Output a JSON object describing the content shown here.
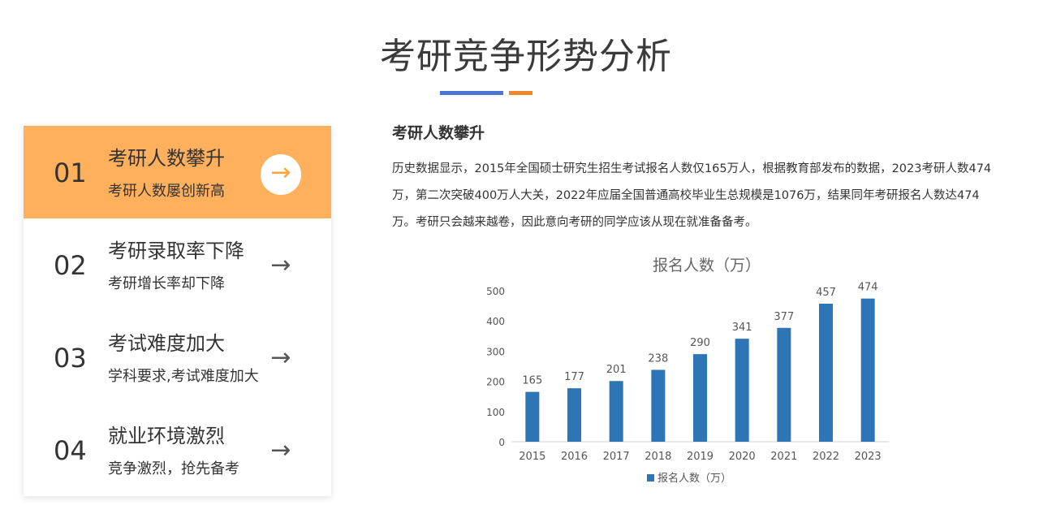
{
  "header": {
    "title": "考研竞争形势分析"
  },
  "colors": {
    "accent_blue": "#4a77d4",
    "accent_orange": "#f0872c",
    "active_bg": "#ffb05c",
    "bar": "#2e75b6"
  },
  "menu": {
    "items": [
      {
        "num": "01",
        "title": "考研人数攀升",
        "sub": "考研人数屡创新高",
        "icon": "arrow-right-icon",
        "active": true
      },
      {
        "num": "02",
        "title": "考研录取率下降",
        "sub": "考研增长率却下降",
        "icon": "arrow-right-icon",
        "active": false
      },
      {
        "num": "03",
        "title": "考试难度加大",
        "sub": "学科要求,考试难度加大",
        "icon": "arrow-right-icon",
        "active": false
      },
      {
        "num": "04",
        "title": "就业环境激烈",
        "sub": "竞争激烈，抢先备考",
        "icon": "arrow-right-icon",
        "active": false
      }
    ]
  },
  "content": {
    "title": "考研人数攀升",
    "text": "历史数据显示，2015年全国硕士研究生招生考试报名人数仅165万人，根据教育部发布的数据，2023考研人数474万，第二次突破400万人大关，2022年应届全国普通高校毕业生总规模是1076万，结果同年考研报名人数达474万。考研只会越来越卷，因此意向考研的同学应该从现在就准备备考。"
  },
  "chart_data": {
    "type": "bar",
    "title": "报名人数（万）",
    "categories": [
      "2015",
      "2016",
      "2017",
      "2018",
      "2019",
      "2020",
      "2021",
      "2022",
      "2023"
    ],
    "series": [
      {
        "name": "报名人数（万）",
        "values": [
          165,
          177,
          201,
          238,
          290,
          341,
          377,
          457,
          474
        ]
      }
    ],
    "ylim": [
      0,
      500
    ],
    "yticks": [
      "0",
      "100",
      "200",
      "300",
      "400",
      "500"
    ],
    "grid": false,
    "legend": "bottom",
    "data_labels": true
  }
}
